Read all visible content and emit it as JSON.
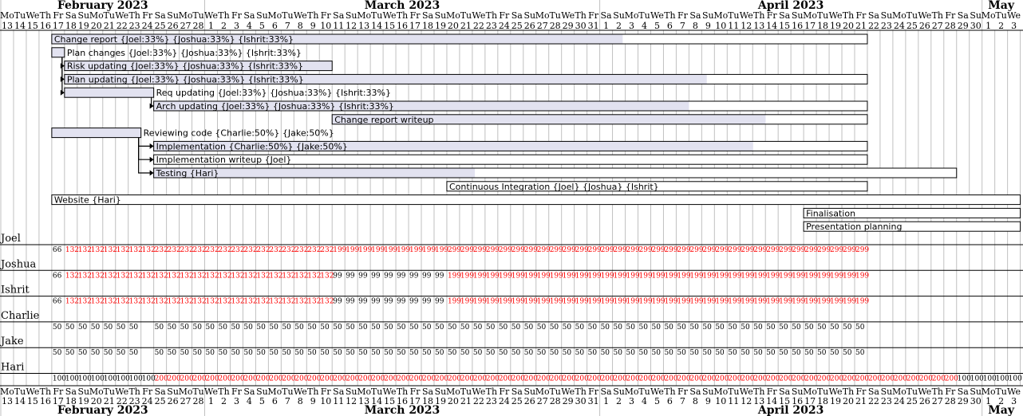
{
  "calendar": {
    "day_names": [
      "Mo",
      "Tu",
      "We",
      "Th",
      "Fr",
      "Sa",
      "Su"
    ],
    "start": {
      "year": 2023,
      "month": 2,
      "day": 13
    },
    "days": 80,
    "months": [
      {
        "label": "February 2023",
        "day_offset": 0,
        "days": 16
      },
      {
        "label": "March 2023",
        "day_offset": 16,
        "days": 31
      },
      {
        "label": "April 2023",
        "day_offset": 47,
        "days": 30
      },
      {
        "label": "May",
        "day_offset": 77,
        "days": 3
      }
    ]
  },
  "tasks": [
    {
      "label": "Change report {Joel:33%} {Joshua:33%} {Ishrit:33%}",
      "start": 4,
      "end": 68,
      "progress": 0.7,
      "label_inside": true
    },
    {
      "label": "Plan changes {Joel:33%} {Joshua:33%} {Ishrit:33%}",
      "start": 4,
      "end": 5,
      "progress": 1.0,
      "label_inside": false
    },
    {
      "label": "Risk updating {Joel:33%} {Joshua:33%} {Ishrit:33%}",
      "start": 5,
      "end": 26,
      "progress": 1.0,
      "label_inside": true
    },
    {
      "label": "Plan updating {Joel:33%} {Joshua:33%} {Ishrit:33%}",
      "start": 5,
      "end": 68,
      "progress": 0.8,
      "label_inside": true
    },
    {
      "label": "Req updating {Joel:33%} {Joshua:33%} {Ishrit:33%}",
      "start": 5,
      "end": 12,
      "progress": 1.0,
      "label_inside": false
    },
    {
      "label": "Arch updating {Joel:33%} {Joshua:33%} {Ishrit:33%}",
      "start": 12,
      "end": 68,
      "progress": 0.75,
      "label_inside": true
    },
    {
      "label": "Change report writeup",
      "start": 26,
      "end": 68,
      "progress": 0.81,
      "label_inside": true
    },
    {
      "label": "Reviewing code {Charlie:50%} {Jake:50%}",
      "start": 4,
      "end": 11,
      "progress": 1.0,
      "label_inside": false
    },
    {
      "label": "Implementation {Charlie:50%} {Jake:50%}",
      "start": 12,
      "end": 68,
      "progress": 0.84,
      "label_inside": true
    },
    {
      "label": "Implementation writeup {Joel}",
      "start": 12,
      "end": 68,
      "progress": 0.0,
      "label_inside": true
    },
    {
      "label": "Testing {Hari}",
      "start": 12,
      "end": 75,
      "progress": 0.4,
      "label_inside": true
    },
    {
      "label": "Continuous Integration {Joel} {Joshua} {Ishrit}",
      "start": 35,
      "end": 68,
      "progress": 0.0,
      "label_inside": true
    },
    {
      "label": "Website {Hari}",
      "start": 4,
      "end": 80,
      "progress": 0.0,
      "label_inside": true
    },
    {
      "label": "Finalisation",
      "start": 63,
      "end": 80,
      "progress": 0.0,
      "label_inside": true
    },
    {
      "label": "Presentation planning",
      "start": 63,
      "end": 80,
      "progress": 0.0,
      "label_inside": true
    }
  ],
  "dependencies": [
    {
      "from": 1,
      "to": 2
    },
    {
      "from": 1,
      "to": 3
    },
    {
      "from": 1,
      "to": 4
    },
    {
      "from": 4,
      "to": 5
    },
    {
      "from": 7,
      "to": 8
    },
    {
      "from": 7,
      "to": 9
    },
    {
      "from": 7,
      "to": 10
    }
  ],
  "resources": [
    {
      "name": "Joel",
      "segments": [
        {
          "from": 4,
          "to": 5,
          "text": "66",
          "over": false
        },
        {
          "from": 5,
          "to": 12,
          "text": "132",
          "over": true
        },
        {
          "from": 12,
          "to": 26,
          "text": "232",
          "over": true
        },
        {
          "from": 26,
          "to": 35,
          "text": "199",
          "over": true
        },
        {
          "from": 35,
          "to": 68,
          "text": "299",
          "over": true
        }
      ]
    },
    {
      "name": "Joshua",
      "segments": [
        {
          "from": 4,
          "to": 5,
          "text": "66",
          "over": false
        },
        {
          "from": 5,
          "to": 26,
          "text": "132",
          "over": true
        },
        {
          "from": 26,
          "to": 35,
          "text": "99",
          "over": false
        },
        {
          "from": 35,
          "to": 68,
          "text": "199",
          "over": true
        }
      ]
    },
    {
      "name": "Ishrit",
      "segments": [
        {
          "from": 4,
          "to": 5,
          "text": "66",
          "over": false
        },
        {
          "from": 5,
          "to": 26,
          "text": "132",
          "over": true
        },
        {
          "from": 26,
          "to": 35,
          "text": "99",
          "over": false
        },
        {
          "from": 35,
          "to": 68,
          "text": "199",
          "over": true
        }
      ]
    },
    {
      "name": "Charlie",
      "segments": [
        {
          "from": 4,
          "to": 11,
          "text": "50",
          "over": false
        },
        {
          "from": 12,
          "to": 68,
          "text": "50",
          "over": false
        }
      ]
    },
    {
      "name": "Jake",
      "segments": [
        {
          "from": 4,
          "to": 11,
          "text": "50",
          "over": false
        },
        {
          "from": 12,
          "to": 68,
          "text": "50",
          "over": false
        }
      ]
    },
    {
      "name": "Hari",
      "segments": [
        {
          "from": 4,
          "to": 12,
          "text": "100",
          "over": false
        },
        {
          "from": 12,
          "to": 75,
          "text": "200",
          "over": true
        },
        {
          "from": 75,
          "to": 80,
          "text": "100",
          "over": false
        }
      ]
    }
  ],
  "colors": {
    "grid": "#c0c0c0",
    "bar_fill": "#ffffff",
    "bar_border": "#000000",
    "progress": "#e2e2f0",
    "overload": "#ff0000",
    "normal": "#000000"
  }
}
